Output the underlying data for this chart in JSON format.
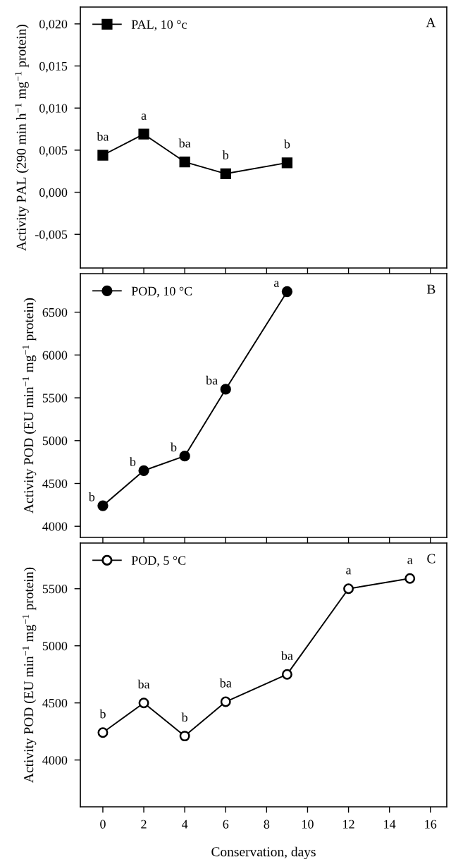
{
  "chart_data": [
    {
      "type": "line",
      "ylabel": "Activity PAL (290 min h$^{−1}$ mg$^{−1}$ protein)",
      "x": [
        0,
        2,
        4,
        6,
        9
      ],
      "series": [
        {
          "name": "PAL, 10 °c",
          "color": "#000000",
          "values": [
            0.0044,
            0.0069,
            0.0036,
            0.0022,
            0.0035
          ]
        }
      ],
      "marker": "square",
      "legend": "top left",
      "xlim": [
        -1.1,
        16.8
      ],
      "xticks": [
        0,
        2,
        4,
        6,
        8,
        10,
        12,
        14,
        16
      ],
      "ylim": [
        -0.009,
        0.022
      ],
      "yticks": [
        {
          "value": -0.005,
          "label": "-0,005"
        },
        {
          "value": 0,
          "label": "0,000"
        },
        {
          "value": 0.005,
          "label": "0,005"
        },
        {
          "value": 0.01,
          "label": "0,010"
        },
        {
          "value": 0.015,
          "label": "0,015"
        },
        {
          "value": 0.02,
          "label": "0,020"
        }
      ],
      "tick_labels": "y",
      "grid": false,
      "annotations": [
        "A",
        {
          "text": "ba",
          "x": 0,
          "y": 0.0044
        },
        {
          "text": "a",
          "x": 2,
          "y": 0.0069
        },
        {
          "text": "ba",
          "x": 4,
          "y": 0.0036
        },
        {
          "text": "b",
          "x": 6,
          "y": 0.0022
        },
        {
          "text": "b",
          "x": 9,
          "y": 0.0035
        }
      ]
    },
    {
      "type": "line",
      "ylabel": "Activity POD (EU min$^{−1}$ mg$^{−1}$ protein)",
      "x": [
        0,
        2,
        4,
        6,
        9
      ],
      "series": [
        {
          "name": "POD, 10 °C",
          "color": "#000000",
          "values": [
            4240,
            4650,
            4820,
            5600,
            6740
          ]
        }
      ],
      "marker": "circle",
      "legend": "top left",
      "xlim": [
        -1.1,
        16.8
      ],
      "xticks": [
        0,
        2,
        4,
        6,
        8,
        10,
        12,
        14,
        16
      ],
      "ylim": [
        3870,
        6950
      ],
      "yticks": [
        4000,
        4500,
        5000,
        5500,
        6000,
        6500
      ],
      "tick_labels": "y",
      "grid": false,
      "annotations": [
        "B",
        {
          "text": "b",
          "x": 0,
          "y": 4240
        },
        {
          "text": "b",
          "x": 2,
          "y": 4650
        },
        {
          "text": "b",
          "x": 4,
          "y": 4820
        },
        {
          "text": "ba",
          "x": 6,
          "y": 5600
        },
        {
          "text": "a",
          "x": 9,
          "y": 6740
        }
      ]
    },
    {
      "type": "line",
      "ylabel": "Activity POD (EU min$^{−1}$ mg$^{−1}$ protein)",
      "xlabel": "Conservation, days",
      "x": [
        0,
        2,
        4,
        6,
        9,
        12,
        15
      ],
      "series": [
        {
          "name": "POD, 5 °C",
          "color": "#000000",
          "colors": [
            "#ffffff",
            "#ffffff",
            "#ffffff",
            "#ffffff",
            "#ffffff",
            "#ffffff",
            "#ffffff"
          ],
          "values": [
            4240,
            4500,
            4210,
            4510,
            4750,
            5500,
            5590
          ]
        }
      ],
      "marker": "circle",
      "legend": "top left",
      "xlim": [
        -1.1,
        16.8
      ],
      "xticks": [
        0,
        2,
        4,
        6,
        8,
        10,
        12,
        14,
        16
      ],
      "ylim": [
        3590,
        5900
      ],
      "yticks": [
        4000,
        4500,
        5000,
        5500
      ],
      "grid": false,
      "annotations": [
        "C",
        {
          "text": "b",
          "x": 0,
          "y": 4240
        },
        {
          "text": "ba",
          "x": 2,
          "y": 4500
        },
        {
          "text": "b",
          "x": 4,
          "y": 4210
        },
        {
          "text": "ba",
          "x": 6,
          "y": 4510
        },
        {
          "text": "ba",
          "x": 9,
          "y": 4750
        },
        {
          "text": "a",
          "x": 12,
          "y": 5500
        },
        {
          "text": "a",
          "x": 15,
          "y": 5590
        }
      ]
    }
  ]
}
